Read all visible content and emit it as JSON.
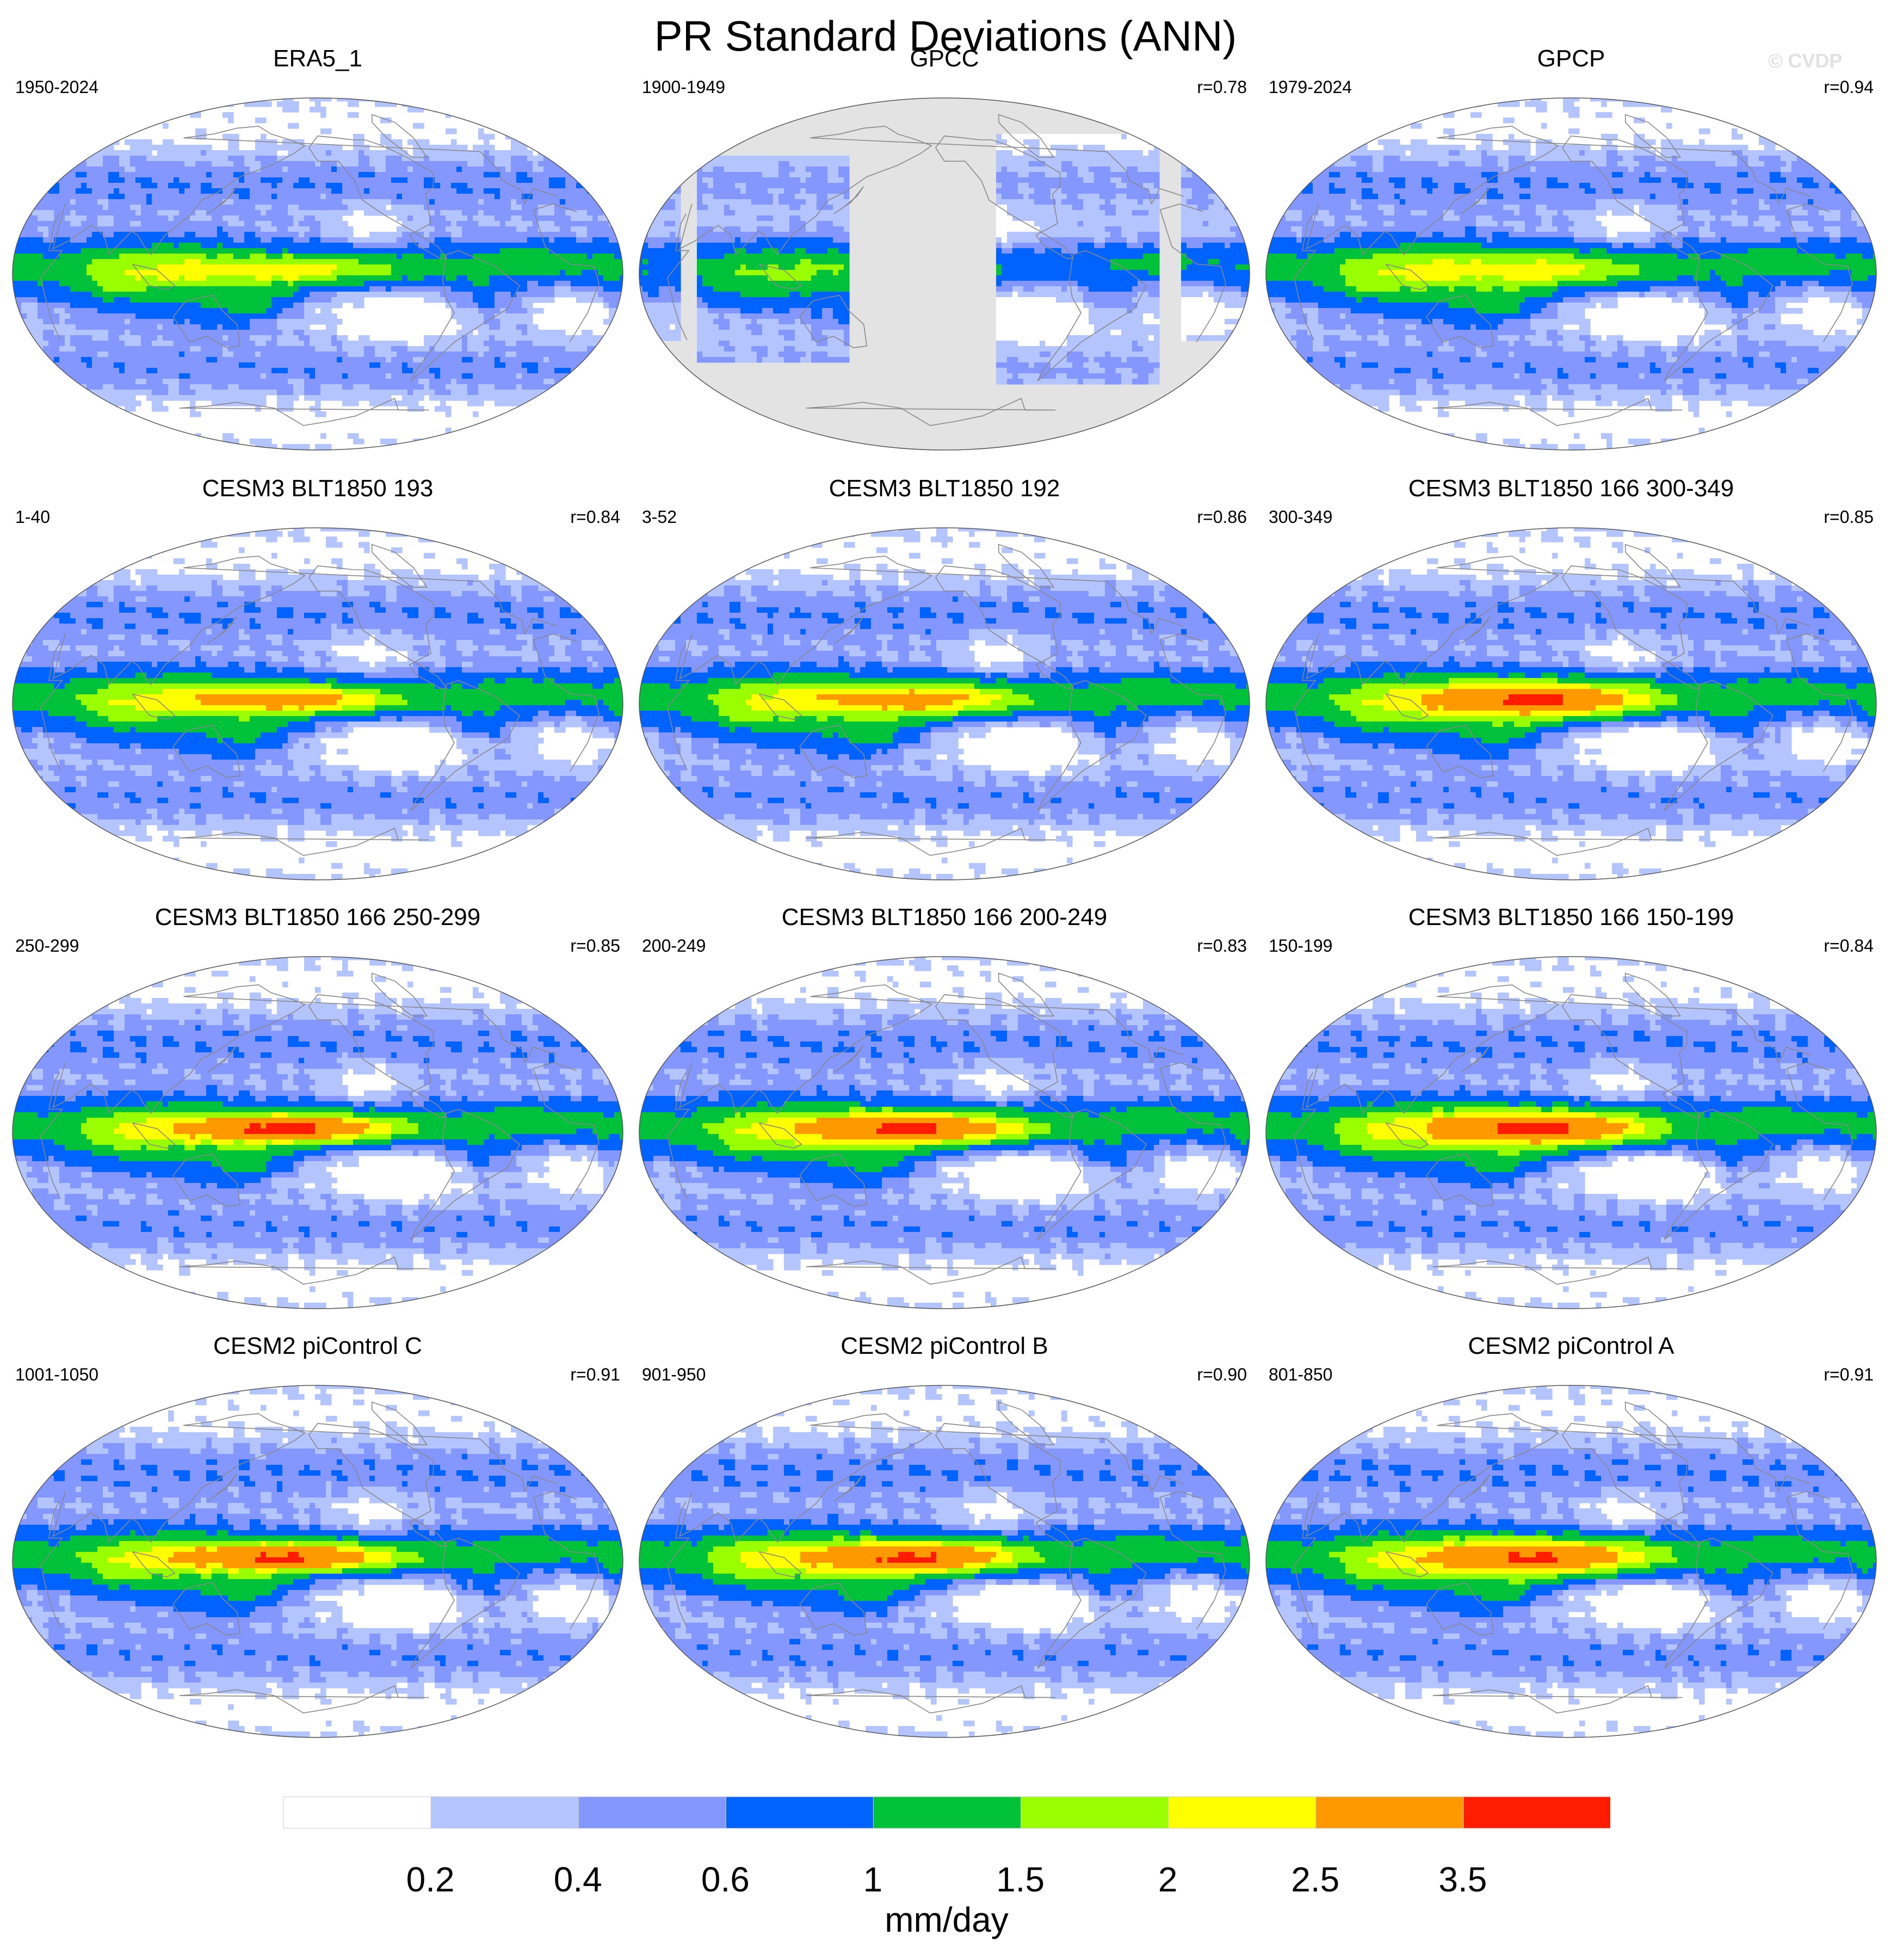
{
  "title": "PR Standard Deviations (ANN)",
  "copyright": "© CVDP",
  "colors": {
    "levels": [
      "#ffffff",
      "#b3c4ff",
      "#8397ff",
      "#0063ff",
      "#00c23a",
      "#99ff00",
      "#ffff00",
      "#ff9900",
      "#ff1c00"
    ],
    "missing": "#e3e3e3",
    "coast": "#888888"
  },
  "chart_data": {
    "type": "heatmap",
    "colorbar": {
      "tick_labels": [
        "0.2",
        "0.4",
        "0.6",
        "1",
        "1.5",
        "2",
        "2.5",
        "3.5"
      ],
      "thresholds": [
        0.2,
        0.4,
        0.6,
        1,
        1.5,
        2,
        2.5,
        3.5
      ],
      "unit": "mm/day"
    },
    "panels": [
      {
        "title": "ERA5_1",
        "years": "1950-2024",
        "corr": "",
        "peak": 2.3,
        "missing_ocean": false
      },
      {
        "title": "GPCC",
        "years": "1900-1949",
        "corr": "r=0.78",
        "peak": 1.6,
        "missing_ocean": true
      },
      {
        "title": "GPCP",
        "years": "1979-2024",
        "corr": "r=0.94",
        "peak": 2.2,
        "missing_ocean": false
      },
      {
        "title": "CESM3 BLT1850 193",
        "years": "1-40",
        "corr": "r=0.84",
        "peak": 3.0,
        "missing_ocean": false
      },
      {
        "title": "CESM3 BLT1850 192",
        "years": "3-52",
        "corr": "r=0.86",
        "peak": 2.9,
        "missing_ocean": false
      },
      {
        "title": "CESM3 BLT1850 166 300-349",
        "years": "300-349",
        "corr": "r=0.85",
        "peak": 3.7,
        "missing_ocean": false
      },
      {
        "title": "CESM3 BLT1850 166 250-299",
        "years": "250-299",
        "corr": "r=0.85",
        "peak": 3.7,
        "missing_ocean": false
      },
      {
        "title": "CESM3 BLT1850 166 200-249",
        "years": "200-249",
        "corr": "r=0.83",
        "peak": 3.7,
        "missing_ocean": false
      },
      {
        "title": "CESM3 BLT1850 166 150-199",
        "years": "150-199",
        "corr": "r=0.84",
        "peak": 3.7,
        "missing_ocean": false
      },
      {
        "title": "CESM2 piControl C",
        "years": "1001-1050",
        "corr": "r=0.91",
        "peak": 3.6,
        "missing_ocean": false
      },
      {
        "title": "CESM2 piControl B",
        "years": "901-950",
        "corr": "r=0.90",
        "peak": 3.6,
        "missing_ocean": false
      },
      {
        "title": "CESM2 piControl A",
        "years": "801-850",
        "corr": "r=0.91",
        "peak": 3.6,
        "missing_ocean": false
      }
    ]
  }
}
